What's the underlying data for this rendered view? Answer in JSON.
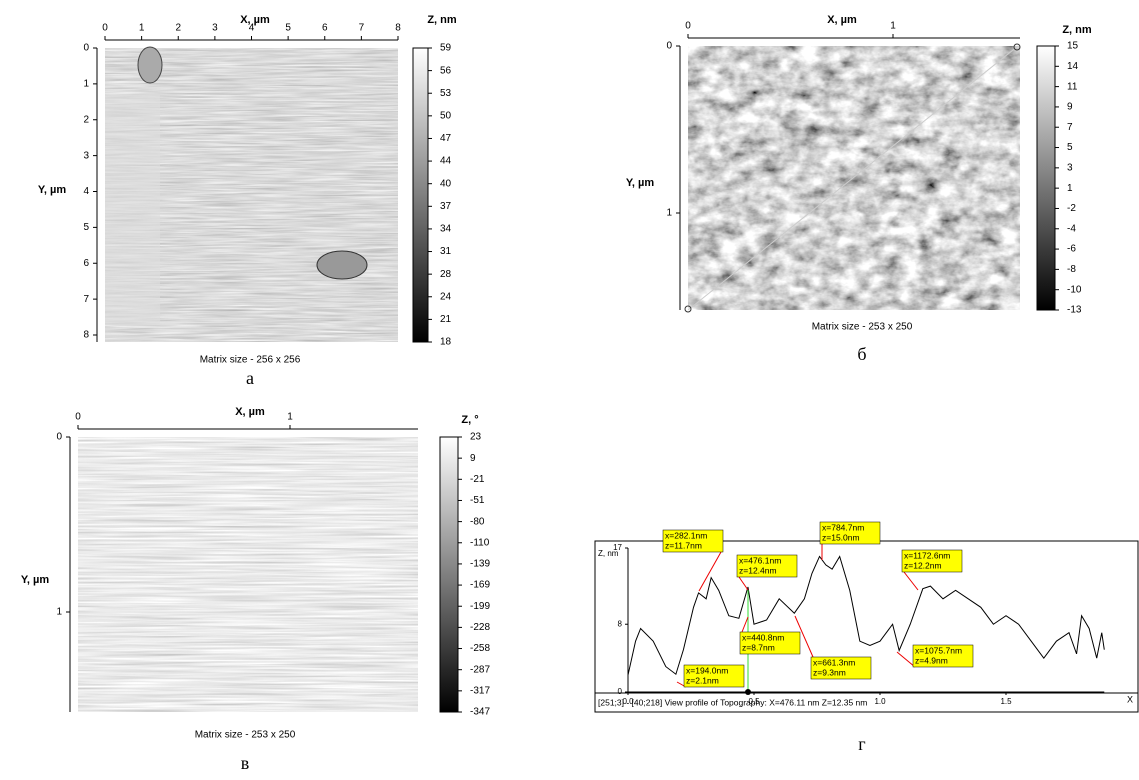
{
  "panels": [
    {
      "x_label": "X, µm",
      "y_label": "Y, µm",
      "z_label": "Z, nm",
      "x_ticks": [
        "0",
        "1",
        "2",
        "3",
        "4",
        "5",
        "6",
        "7",
        "8"
      ],
      "y_ticks": [
        "0",
        "1",
        "2",
        "3",
        "4",
        "5",
        "6",
        "7",
        "8"
      ],
      "z_ticks": [
        "59",
        "56",
        "53",
        "50",
        "47",
        "44",
        "40",
        "37",
        "34",
        "31",
        "28",
        "24",
        "21",
        "18"
      ],
      "caption": "Matrix size - 256 x 256",
      "letter": "а"
    },
    {
      "x_label": "X, µm",
      "y_label": "Y, µm",
      "z_label": "Z, nm",
      "x_ticks": [
        "0",
        "1"
      ],
      "y_ticks": [
        "0",
        "1"
      ],
      "z_ticks": [
        "15",
        "14",
        "11",
        "9",
        "7",
        "5",
        "3",
        "1",
        "-2",
        "-4",
        "-6",
        "-8",
        "-10",
        "-13"
      ],
      "caption": "Matrix size - 253 x 250",
      "letter": "б"
    },
    {
      "x_label": "X, µm",
      "y_label": "Y, µm",
      "z_label": "Z, °",
      "x_ticks": [
        "0",
        "1"
      ],
      "y_ticks": [
        "0",
        "1"
      ],
      "z_ticks": [
        "23",
        "9",
        "-21",
        "-51",
        "-80",
        "-110",
        "-139",
        "-169",
        "-199",
        "-228",
        "-258",
        "-287",
        "-317",
        "-347"
      ],
      "caption": "Matrix size - 253 x 250",
      "letter": "в"
    }
  ],
  "profile": {
    "y_label": "Z, nm",
    "x_label": "X",
    "xlim": [
      0,
      1.89
    ],
    "ylim": [
      0,
      17
    ],
    "xticks": [
      {
        "value": 0,
        "label": "0.0"
      },
      {
        "value": 0.5,
        "label": "0.5"
      },
      {
        "value": 1,
        "label": "1.0"
      },
      {
        "value": 1.5,
        "label": "1.5"
      }
    ],
    "yticks": [
      0,
      8,
      17
    ],
    "x": [
      0,
      0.03,
      0.05,
      0.1,
      0.15,
      0.19,
      0.22,
      0.26,
      0.28,
      0.31,
      0.33,
      0.36,
      0.4,
      0.44,
      0.476,
      0.5,
      0.55,
      0.6,
      0.66,
      0.7,
      0.73,
      0.76,
      0.785,
      0.81,
      0.84,
      0.88,
      0.92,
      0.96,
      1.0,
      1.05,
      1.076,
      1.12,
      1.17,
      1.2,
      1.25,
      1.3,
      1.35,
      1.4,
      1.45,
      1.5,
      1.55,
      1.6,
      1.65,
      1.7,
      1.75,
      1.78,
      1.8,
      1.83,
      1.86,
      1.88,
      1.89
    ],
    "values": [
      2,
      6,
      7.5,
      6,
      3,
      2.1,
      5,
      10,
      11.7,
      11,
      13.5,
      12,
      9,
      8.7,
      12.4,
      8,
      8.5,
      11,
      9.3,
      11,
      14,
      16,
      15,
      14.5,
      16,
      12,
      6,
      5.5,
      6,
      8,
      4.9,
      8,
      12.2,
      12.5,
      11,
      12,
      11,
      10,
      8,
      9,
      8,
      6,
      4,
      6,
      7,
      4.5,
      9,
      7.5,
      4,
      7,
      5
    ],
    "annotations": [
      {
        "x": "x=282.1nm",
        "z": "z=11.7nm"
      },
      {
        "x": "x=476.1nm",
        "z": "z=12.4nm"
      },
      {
        "x": "x=440.8nm",
        "z": "z=8.7nm"
      },
      {
        "x": "x=194.0nm",
        "z": "z=2.1nm"
      },
      {
        "x": "x=784.7nm",
        "z": "z=15.0nm"
      },
      {
        "x": "x=661.3nm",
        "z": "z=9.3nm"
      },
      {
        "x": "x=1172.6nm",
        "z": "z=12.2nm"
      },
      {
        "x": "x=1075.7nm",
        "z": "z=4.9nm"
      }
    ],
    "status": "[251;3] - [40;218]  View profile of Topography:  X=476.11 nm  Z=12.35 nm",
    "letter": "г"
  }
}
